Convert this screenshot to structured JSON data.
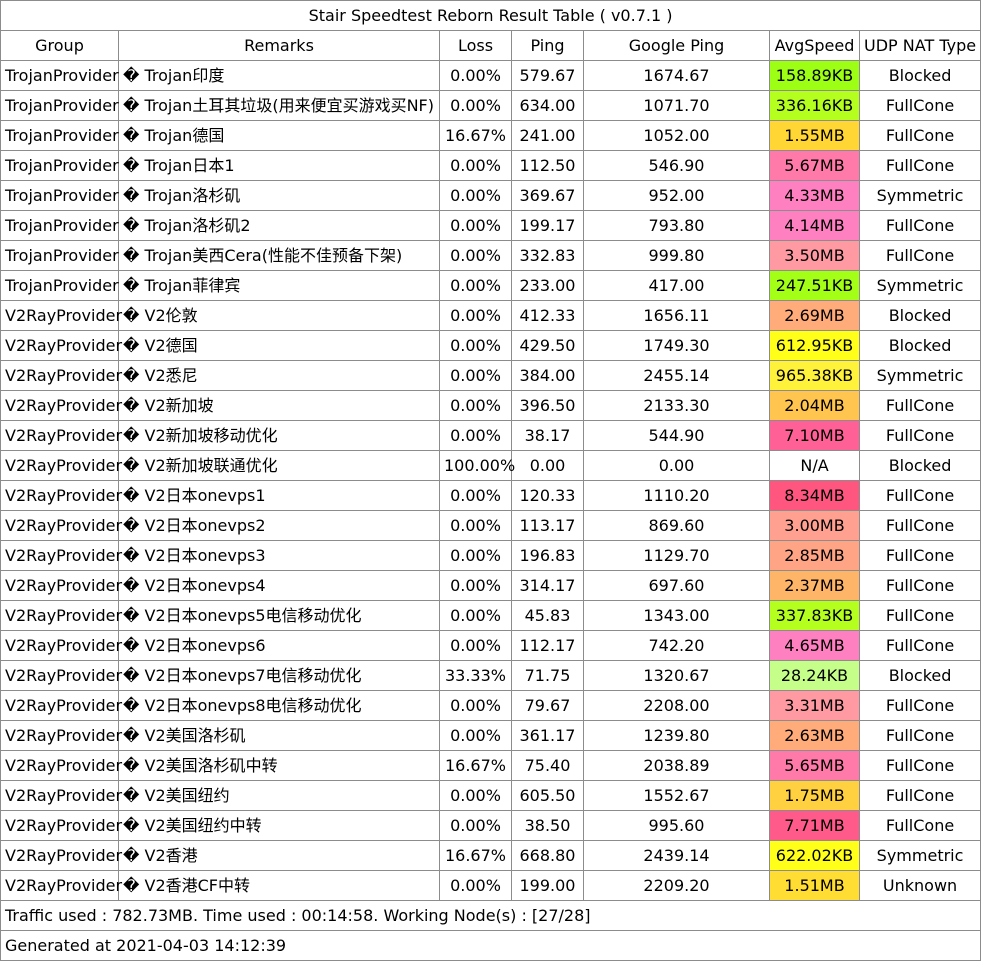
{
  "title": "Stair Speedtest Reborn Result Table ( v0.7.1 )",
  "headers": [
    "Group",
    "Remarks",
    "Loss",
    "Ping",
    "Google Ping",
    "AvgSpeed",
    "UDP NAT Type"
  ],
  "rows": [
    {
      "group": "TrojanProvider",
      "remarks": "� Trojan印度",
      "loss": "0.00%",
      "ping": "579.67",
      "gping": "1674.67",
      "speed": "158.89KB",
      "speed_color": "#9dff13",
      "nat": "Blocked"
    },
    {
      "group": "TrojanProvider",
      "remarks": "� Trojan土耳其垃圾(用来便宜买游戏买NF)",
      "loss": "0.00%",
      "ping": "634.00",
      "gping": "1071.70",
      "speed": "336.16KB",
      "speed_color": "#b5ff1f",
      "nat": "FullCone"
    },
    {
      "group": "TrojanProvider",
      "remarks": "� Trojan德国",
      "loss": "16.67%",
      "ping": "241.00",
      "gping": "1052.00",
      "speed": "1.55MB",
      "speed_color": "#ffd633",
      "nat": "FullCone"
    },
    {
      "group": "TrojanProvider",
      "remarks": "� Trojan日本1",
      "loss": "0.00%",
      "ping": "112.50",
      "gping": "546.90",
      "speed": "5.67MB",
      "speed_color": "#ff7aa8",
      "nat": "FullCone"
    },
    {
      "group": "TrojanProvider",
      "remarks": "� Trojan洛杉矶",
      "loss": "0.00%",
      "ping": "369.67",
      "gping": "952.00",
      "speed": "4.33MB",
      "speed_color": "#ff80c0",
      "nat": "Symmetric"
    },
    {
      "group": "TrojanProvider",
      "remarks": "� Trojan洛杉矶2",
      "loss": "0.00%",
      "ping": "199.17",
      "gping": "793.80",
      "speed": "4.14MB",
      "speed_color": "#ff80c0",
      "nat": "FullCone"
    },
    {
      "group": "TrojanProvider",
      "remarks": "� Trojan美西Cera(性能不佳预备下架)",
      "loss": "0.00%",
      "ping": "332.83",
      "gping": "999.80",
      "speed": "3.50MB",
      "speed_color": "#ff9aa2",
      "nat": "FullCone"
    },
    {
      "group": "TrojanProvider",
      "remarks": "� Trojan菲律宾",
      "loss": "0.00%",
      "ping": "233.00",
      "gping": "417.00",
      "speed": "247.51KB",
      "speed_color": "#a3ff15",
      "nat": "Symmetric"
    },
    {
      "group": "V2RayProvider",
      "remarks": "� V2伦敦",
      "loss": "0.00%",
      "ping": "412.33",
      "gping": "1656.11",
      "speed": "2.69MB",
      "speed_color": "#ffab7a",
      "nat": "Blocked"
    },
    {
      "group": "V2RayProvider",
      "remarks": "� V2德国",
      "loss": "0.00%",
      "ping": "429.50",
      "gping": "1749.30",
      "speed": "612.95KB",
      "speed_color": "#ffff1a",
      "nat": "Blocked"
    },
    {
      "group": "V2RayProvider",
      "remarks": "� V2悉尼",
      "loss": "0.00%",
      "ping": "384.00",
      "gping": "2455.14",
      "speed": "965.38KB",
      "speed_color": "#fff23a",
      "nat": "Symmetric"
    },
    {
      "group": "V2RayProvider",
      "remarks": "� V2新加坡",
      "loss": "0.00%",
      "ping": "396.50",
      "gping": "2133.30",
      "speed": "2.04MB",
      "speed_color": "#ffc54f",
      "nat": "FullCone"
    },
    {
      "group": "V2RayProvider",
      "remarks": "� V2新加坡移动优化",
      "loss": "0.00%",
      "ping": "38.17",
      "gping": "544.90",
      "speed": "7.10MB",
      "speed_color": "#ff6196",
      "nat": "FullCone"
    },
    {
      "group": "V2RayProvider",
      "remarks": "� V2新加坡联通优化",
      "loss": "100.00%",
      "ping": "0.00",
      "gping": "0.00",
      "speed": "N/A",
      "speed_color": "#ffffff",
      "nat": "Blocked"
    },
    {
      "group": "V2RayProvider",
      "remarks": "� V2日本onevps1",
      "loss": "0.00%",
      "ping": "120.33",
      "gping": "1110.20",
      "speed": "8.34MB",
      "speed_color": "#ff5680",
      "nat": "FullCone"
    },
    {
      "group": "V2RayProvider",
      "remarks": "� V2日本onevps2",
      "loss": "0.00%",
      "ping": "113.17",
      "gping": "869.60",
      "speed": "3.00MB",
      "speed_color": "#ffa090",
      "nat": "FullCone"
    },
    {
      "group": "V2RayProvider",
      "remarks": "� V2日本onevps3",
      "loss": "0.00%",
      "ping": "196.83",
      "gping": "1129.70",
      "speed": "2.85MB",
      "speed_color": "#ffa585",
      "nat": "FullCone"
    },
    {
      "group": "V2RayProvider",
      "remarks": "� V2日本onevps4",
      "loss": "0.00%",
      "ping": "314.17",
      "gping": "697.60",
      "speed": "2.37MB",
      "speed_color": "#ffb568",
      "nat": "FullCone"
    },
    {
      "group": "V2RayProvider",
      "remarks": "� V2日本onevps5电信移动优化",
      "loss": "0.00%",
      "ping": "45.83",
      "gping": "1343.00",
      "speed": "337.83KB",
      "speed_color": "#b5ff1f",
      "nat": "FullCone"
    },
    {
      "group": "V2RayProvider",
      "remarks": "� V2日本onevps6",
      "loss": "0.00%",
      "ping": "112.17",
      "gping": "742.20",
      "speed": "4.65MB",
      "speed_color": "#ff80c0",
      "nat": "FullCone"
    },
    {
      "group": "V2RayProvider",
      "remarks": "� V2日本onevps7电信移动优化",
      "loss": "33.33%",
      "ping": "71.75",
      "gping": "1320.67",
      "speed": "28.24KB",
      "speed_color": "#c5ff8a",
      "nat": "Blocked"
    },
    {
      "group": "V2RayProvider",
      "remarks": "� V2日本onevps8电信移动优化",
      "loss": "0.00%",
      "ping": "79.67",
      "gping": "2208.00",
      "speed": "3.31MB",
      "speed_color": "#ff9aa2",
      "nat": "FullCone"
    },
    {
      "group": "V2RayProvider",
      "remarks": "� V2美国洛杉矶",
      "loss": "0.00%",
      "ping": "361.17",
      "gping": "1239.80",
      "speed": "2.63MB",
      "speed_color": "#ffab7a",
      "nat": "FullCone"
    },
    {
      "group": "V2RayProvider",
      "remarks": "� V2美国洛杉矶中转",
      "loss": "16.67%",
      "ping": "75.40",
      "gping": "2038.89",
      "speed": "5.65MB",
      "speed_color": "#ff7aa8",
      "nat": "FullCone"
    },
    {
      "group": "V2RayProvider",
      "remarks": "� V2美国纽约",
      "loss": "0.00%",
      "ping": "605.50",
      "gping": "1552.67",
      "speed": "1.75MB",
      "speed_color": "#ffd140",
      "nat": "FullCone"
    },
    {
      "group": "V2RayProvider",
      "remarks": "� V2美国纽约中转",
      "loss": "0.00%",
      "ping": "38.50",
      "gping": "995.60",
      "speed": "7.71MB",
      "speed_color": "#ff5a8a",
      "nat": "FullCone"
    },
    {
      "group": "V2RayProvider",
      "remarks": "� V2香港",
      "loss": "16.67%",
      "ping": "668.80",
      "gping": "2439.14",
      "speed": "622.02KB",
      "speed_color": "#ffff1a",
      "nat": "Symmetric"
    },
    {
      "group": "V2RayProvider",
      "remarks": "� V2香港CF中转",
      "loss": "0.00%",
      "ping": "199.00",
      "gping": "2209.20",
      "speed": "1.51MB",
      "speed_color": "#ffdd33",
      "nat": "Unknown"
    }
  ],
  "footer_traffic": "Traffic used : 782.73MB. Time used : 00:14:58. Working Node(s) : [27/28]",
  "footer_generated": "Generated at 2021-04-03 14:12:39"
}
